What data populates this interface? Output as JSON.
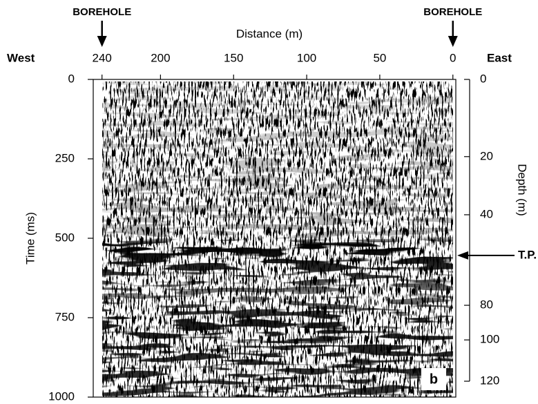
{
  "chart_data": {
    "type": "seismic-section",
    "x_label": "Distance (m)",
    "y_label": "Time (ms)",
    "y2_label": "Depth (m)",
    "xlim": [
      246,
      -2
    ],
    "xticks": [
      240,
      200,
      150,
      100,
      50,
      0
    ],
    "ylim": [
      0,
      1000
    ],
    "yticks": [
      0,
      250,
      500,
      750,
      1000
    ],
    "y2ticks": [
      0,
      20,
      40,
      80,
      100,
      120
    ],
    "y2tick_times": [
      0,
      243,
      426,
      711,
      820,
      950
    ],
    "west_label": "West",
    "east_label": "East",
    "boreholes": [
      {
        "label": "BOREHOLE",
        "x": 240
      },
      {
        "label": "BOREHOLE",
        "x": 0
      }
    ],
    "tp": {
      "label": "T.P.",
      "time": 554
    },
    "panel_label": "b"
  }
}
